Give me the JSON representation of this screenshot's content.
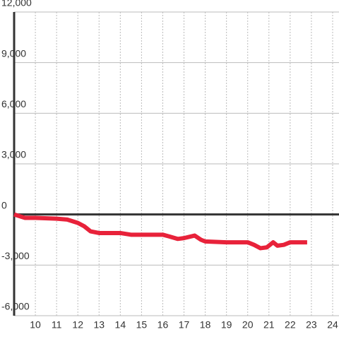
{
  "chart_data": {
    "type": "line",
    "x": [
      9,
      9.5,
      10,
      11,
      11.5,
      12,
      12.3,
      12.6,
      13,
      14,
      14.5,
      15,
      16,
      16.3,
      16.7,
      17,
      17.5,
      17.8,
      18,
      19,
      20,
      20.3,
      20.6,
      20.9,
      21.2,
      21.4,
      21.7,
      22,
      22.8
    ],
    "series": [
      {
        "color": "#e8223a",
        "values": [
          0,
          -200,
          -200,
          -250,
          -300,
          -500,
          -700,
          -1000,
          -1100,
          -1100,
          -1200,
          -1200,
          -1200,
          -1300,
          -1450,
          -1400,
          -1250,
          -1500,
          -1600,
          -1650,
          -1650,
          -1800,
          -2000,
          -1950,
          -1650,
          -1850,
          -1800,
          -1650,
          -1650
        ]
      }
    ],
    "xlim": [
      9,
      24.3
    ],
    "xticks": [
      10,
      11,
      12,
      13,
      14,
      15,
      16,
      17,
      18,
      19,
      20,
      21,
      22,
      23,
      24
    ],
    "ylim": [
      -6000,
      12000
    ],
    "yticks": [
      {
        "value": -6000,
        "label": "-6,000"
      },
      {
        "value": -3000,
        "label": "-3,000"
      },
      0,
      {
        "value": 3000,
        "label": "3,000"
      },
      {
        "value": 6000,
        "label": "6,000"
      },
      {
        "value": 9000,
        "label": "9,000"
      },
      {
        "value": 12000,
        "label": "12,000"
      }
    ],
    "grid": true
  }
}
